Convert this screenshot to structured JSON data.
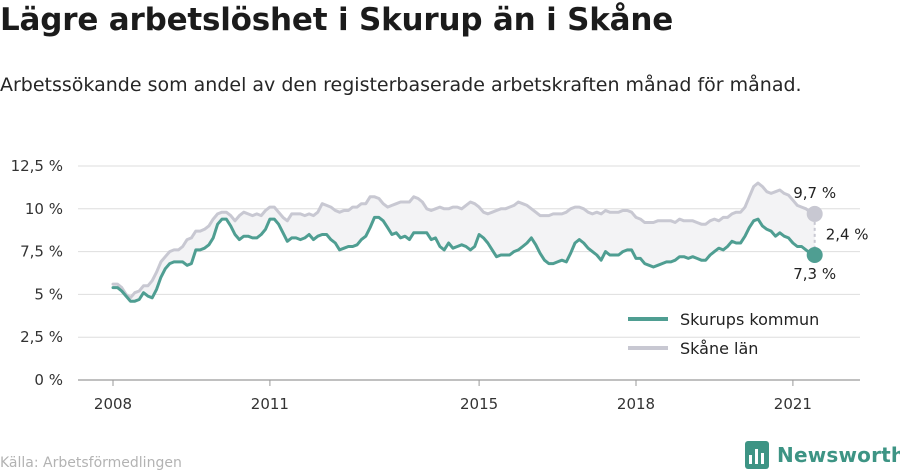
{
  "header": {
    "title": "Lägre arbetslöshet i Skurup än i Skåne",
    "subtitle": "Arbetssökande som andel av den registerbaserade arbetskraften månad för månad."
  },
  "footer": {
    "source": "Källa: Arbetsförmedlingen",
    "brand": "Newsworthy"
  },
  "colors": {
    "skurup": "#4f9e92",
    "skane": "#c8c8d2",
    "band": "#f3f3f5",
    "grid": "#dedede"
  },
  "chart_data": {
    "type": "line",
    "title": "Lägre arbetslöshet i Skurup än i Skåne",
    "subtitle": "Arbetssökande som andel av den registerbaserade arbetskraften månad för månad.",
    "ylim": [
      0,
      12.5
    ],
    "y_ticks": [
      0,
      2.5,
      5,
      7.5,
      10,
      12.5
    ],
    "y_tick_labels": [
      "0 %",
      "2,5 %",
      "5 %",
      "7,5 %",
      "10 %",
      "12,5 %"
    ],
    "x_ticks": [
      2008,
      2011,
      2015,
      2018,
      2021
    ],
    "x_tick_labels": [
      "2008",
      "2011",
      "2015",
      "2018",
      "2021"
    ],
    "grid": true,
    "legend_position": "bottom-right",
    "series": [
      {
        "name": "Skurups kommun",
        "start": "2008-01",
        "frequency": "monthly",
        "values": [
          5.4,
          5.4,
          5.2,
          4.9,
          4.6,
          4.6,
          4.7,
          5.1,
          4.9,
          4.8,
          5.3,
          6.0,
          6.5,
          6.8,
          6.9,
          6.9,
          6.9,
          6.7,
          6.8,
          7.6,
          7.6,
          7.7,
          7.9,
          8.3,
          9.1,
          9.4,
          9.4,
          9.0,
          8.5,
          8.2,
          8.4,
          8.4,
          8.3,
          8.3,
          8.5,
          8.8,
          9.4,
          9.4,
          9.1,
          8.6,
          8.1,
          8.3,
          8.3,
          8.2,
          8.3,
          8.5,
          8.2,
          8.4,
          8.5,
          8.5,
          8.2,
          8.0,
          7.6,
          7.7,
          7.8,
          7.8,
          7.9,
          8.2,
          8.4,
          8.9,
          9.5,
          9.5,
          9.3,
          8.9,
          8.5,
          8.6,
          8.3,
          8.4,
          8.2,
          8.6,
          8.6,
          8.6,
          8.6,
          8.2,
          8.3,
          7.8,
          7.6,
          8.0,
          7.7,
          7.8,
          7.9,
          7.8,
          7.6,
          7.8,
          8.5,
          8.3,
          8.0,
          7.6,
          7.2,
          7.3,
          7.3,
          7.3,
          7.5,
          7.6,
          7.8,
          8.0,
          8.3,
          7.9,
          7.4,
          7.0,
          6.8,
          6.8,
          6.9,
          7.0,
          6.9,
          7.4,
          8.0,
          8.2,
          8.0,
          7.7,
          7.5,
          7.3,
          7.0,
          7.5,
          7.3,
          7.3,
          7.3,
          7.5,
          7.6,
          7.6,
          7.1,
          7.1,
          6.8,
          6.7,
          6.6,
          6.7,
          6.8,
          6.9,
          6.9,
          7.0,
          7.2,
          7.2,
          7.1,
          7.2,
          7.1,
          7.0,
          7.0,
          7.3,
          7.5,
          7.7,
          7.6,
          7.8,
          8.1,
          8.0,
          8.0,
          8.4,
          8.9,
          9.3,
          9.4,
          9.0,
          8.8,
          8.7,
          8.4,
          8.6,
          8.4,
          8.3,
          8.0,
          7.8,
          7.8,
          7.6,
          7.4,
          7.3
        ]
      },
      {
        "name": "Skåne län",
        "start": "2008-01",
        "frequency": "monthly",
        "values": [
          5.6,
          5.6,
          5.4,
          5.0,
          4.8,
          5.1,
          5.2,
          5.5,
          5.5,
          5.8,
          6.3,
          6.9,
          7.2,
          7.5,
          7.6,
          7.6,
          7.8,
          8.2,
          8.3,
          8.7,
          8.7,
          8.8,
          9.0,
          9.4,
          9.7,
          9.8,
          9.8,
          9.6,
          9.3,
          9.6,
          9.8,
          9.7,
          9.6,
          9.7,
          9.6,
          9.9,
          10.1,
          10.1,
          9.8,
          9.5,
          9.3,
          9.7,
          9.7,
          9.7,
          9.6,
          9.7,
          9.6,
          9.8,
          10.3,
          10.2,
          10.1,
          9.9,
          9.8,
          9.9,
          9.9,
          10.1,
          10.1,
          10.3,
          10.3,
          10.7,
          10.7,
          10.6,
          10.3,
          10.1,
          10.2,
          10.3,
          10.4,
          10.4,
          10.4,
          10.7,
          10.6,
          10.4,
          10.0,
          9.9,
          10.0,
          10.1,
          10.0,
          10.0,
          10.1,
          10.1,
          10.0,
          10.2,
          10.4,
          10.3,
          10.1,
          9.8,
          9.7,
          9.8,
          9.9,
          10.0,
          10.0,
          10.1,
          10.2,
          10.4,
          10.3,
          10.2,
          10.0,
          9.8,
          9.6,
          9.6,
          9.6,
          9.7,
          9.7,
          9.7,
          9.8,
          10.0,
          10.1,
          10.1,
          10.0,
          9.8,
          9.7,
          9.8,
          9.7,
          9.9,
          9.8,
          9.8,
          9.8,
          9.9,
          9.9,
          9.8,
          9.5,
          9.4,
          9.2,
          9.2,
          9.2,
          9.3,
          9.3,
          9.3,
          9.3,
          9.2,
          9.4,
          9.3,
          9.3,
          9.3,
          9.2,
          9.1,
          9.1,
          9.3,
          9.4,
          9.3,
          9.5,
          9.5,
          9.7,
          9.8,
          9.8,
          10.1,
          10.7,
          11.3,
          11.5,
          11.3,
          11.0,
          10.9,
          11.0,
          11.1,
          10.9,
          10.8,
          10.5,
          10.2,
          10.1,
          10.0,
          9.8,
          9.7
        ]
      }
    ],
    "annotations": {
      "skane_last": "9,7 %",
      "skurup_last": "7,3 %",
      "difference": "2,4 %"
    }
  }
}
